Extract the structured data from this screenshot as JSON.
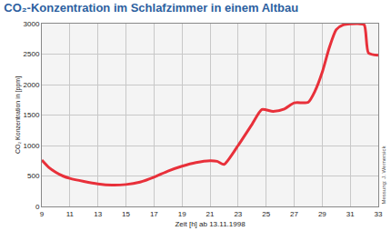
{
  "chart_data": {
    "type": "line",
    "title": "CO₂-Konzentration im Schlafzimmer in einem Altbau",
    "x_label": "Zeit [h] ab 13.11.1998",
    "y_label": "CO₂ Konzentration in [ppm]",
    "annotations": [
      "Messung: J. Wernersick"
    ],
    "x": [
      9,
      9.5,
      10,
      10.5,
      11,
      12,
      13,
      14,
      15,
      16,
      17,
      18,
      19,
      20,
      21,
      21.5,
      22,
      23,
      24,
      24.7,
      25.5,
      26.3,
      27,
      28,
      28.5,
      29,
      29.5,
      30,
      30.5,
      31.5,
      32,
      32.3,
      33
    ],
    "values": [
      760,
      640,
      560,
      500,
      460,
      410,
      370,
      350,
      360,
      400,
      480,
      580,
      660,
      720,
      750,
      740,
      690,
      1000,
      1350,
      1590,
      1560,
      1600,
      1700,
      1710,
      1900,
      2200,
      2600,
      2900,
      2980,
      3000,
      2980,
      2520,
      2480
    ],
    "color": "#e8303a",
    "xlim": [
      9,
      33
    ],
    "xticks": [
      9,
      11,
      13,
      15,
      17,
      19,
      21,
      23,
      25,
      27,
      29,
      31,
      33
    ],
    "ylim": [
      0,
      3000
    ],
    "yticks": [
      0,
      500,
      1000,
      1500,
      2000,
      2500,
      3000
    ],
    "grid": true
  }
}
